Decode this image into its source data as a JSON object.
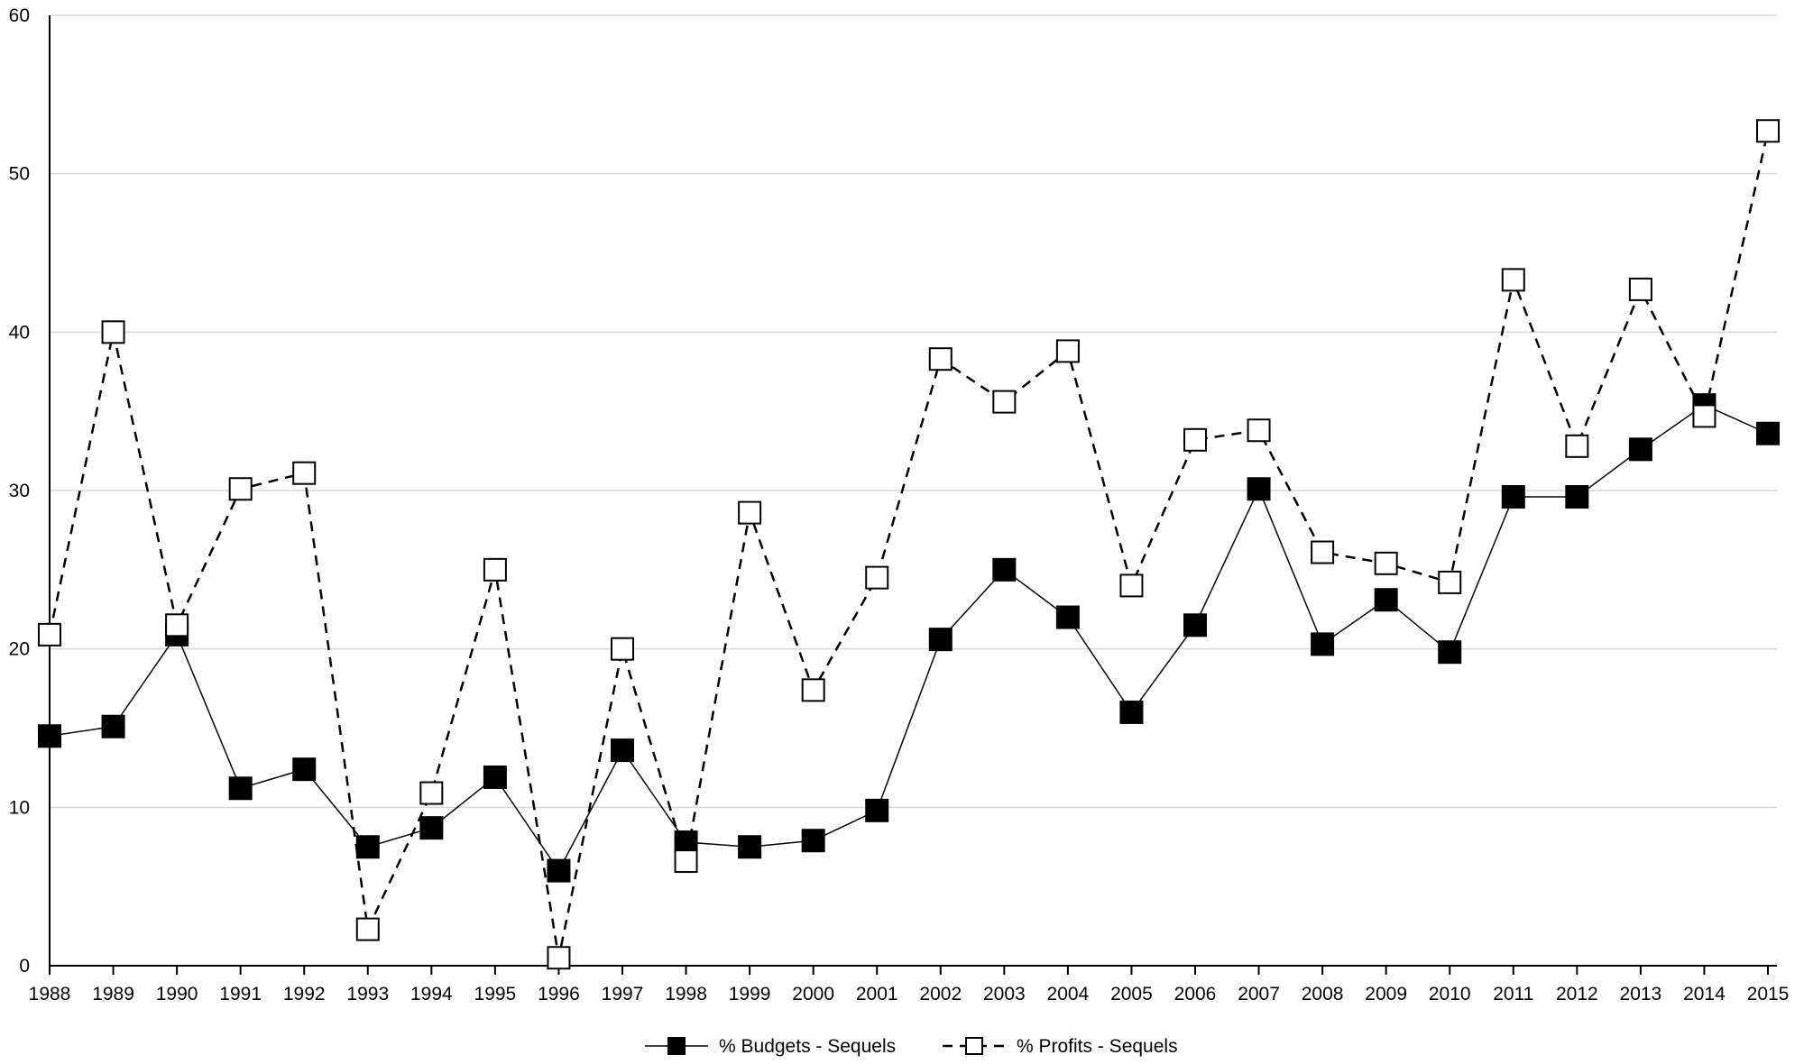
{
  "chart_data": {
    "type": "line",
    "title": "",
    "xlabel": "",
    "ylabel": "",
    "ylim": [
      0,
      60
    ],
    "yticks": [
      "0",
      "10",
      "20",
      "30",
      "40",
      "50",
      "60"
    ],
    "grid": true,
    "legend_position": "bottom-center",
    "categories": [
      "1988",
      "1989",
      "1990",
      "1991",
      "1992",
      "1993",
      "1994",
      "1995",
      "1996",
      "1997",
      "1998",
      "1999",
      "2000",
      "2001",
      "2002",
      "2003",
      "2004",
      "2005",
      "2006",
      "2007",
      "2008",
      "2009",
      "2010",
      "2011",
      "2012",
      "2013",
      "2014",
      "2015"
    ],
    "series": [
      {
        "name": "% Budgets - Sequels",
        "style": "solid-line-filled-square",
        "color": "#000000",
        "values": [
          14.5,
          15.1,
          20.9,
          11.2,
          12.4,
          7.5,
          8.7,
          11.9,
          6.0,
          13.6,
          7.8,
          7.5,
          7.9,
          9.8,
          20.6,
          25.0,
          22.0,
          16.0,
          21.5,
          30.1,
          20.3,
          23.1,
          19.8,
          29.6,
          29.6,
          32.6,
          35.4,
          33.6
        ]
      },
      {
        "name": "% Profits - Sequels",
        "style": "dashed-line-open-square",
        "color": "#000000",
        "values": [
          20.9,
          40.0,
          21.5,
          30.1,
          31.1,
          2.3,
          10.9,
          25.0,
          0.5,
          20.0,
          6.6,
          28.6,
          17.4,
          24.5,
          38.3,
          35.6,
          38.8,
          24.0,
          33.2,
          33.8,
          26.1,
          25.4,
          24.2,
          43.3,
          32.8,
          42.7,
          34.7,
          52.7
        ]
      }
    ]
  }
}
